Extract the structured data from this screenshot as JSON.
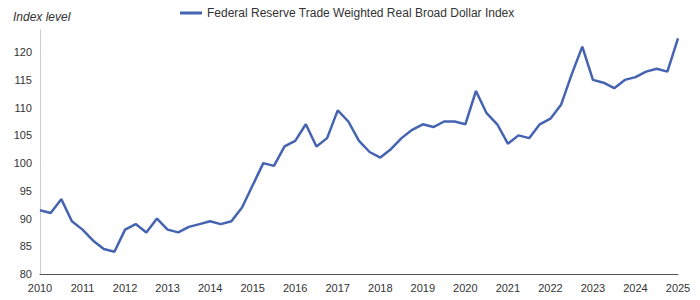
{
  "chart_data": {
    "type": "line",
    "y_label": "Index level",
    "legend": "top",
    "grid": false,
    "x": [
      2010,
      2010.25,
      2010.5,
      2010.75,
      2011,
      2011.25,
      2011.5,
      2011.75,
      2012,
      2012.25,
      2012.5,
      2012.75,
      2013,
      2013.25,
      2013.5,
      2013.75,
      2014,
      2014.25,
      2014.5,
      2014.75,
      2015,
      2015.25,
      2015.5,
      2015.75,
      2016,
      2016.25,
      2016.5,
      2016.75,
      2017,
      2017.25,
      2017.5,
      2017.75,
      2018,
      2018.25,
      2018.5,
      2018.75,
      2019,
      2019.25,
      2019.5,
      2019.75,
      2020,
      2020.25,
      2020.5,
      2020.75,
      2021,
      2021.25,
      2021.5,
      2021.75,
      2022,
      2022.25,
      2022.5,
      2022.75,
      2023,
      2023.25,
      2023.5,
      2023.75,
      2024,
      2024.25,
      2024.5,
      2024.75,
      2025
    ],
    "series": [
      {
        "name": "Federal Reserve Trade Weighted Real Broad Dollar Index",
        "color": "#4463b0",
        "values": [
          91.5,
          91,
          93.5,
          89.5,
          88,
          86,
          84.5,
          84,
          88,
          89,
          87.5,
          90,
          88,
          87.5,
          88.5,
          89,
          89.5,
          89,
          89.5,
          92,
          96,
          100,
          99.5,
          103,
          104,
          107,
          103,
          104.5,
          109.5,
          107.5,
          104,
          102,
          101,
          102.5,
          104.5,
          106,
          107,
          106.5,
          107.5,
          107.5,
          107,
          113,
          109,
          107,
          103.5,
          105,
          104.5,
          107,
          108,
          110.5,
          116,
          121,
          115,
          114.5,
          113.5,
          115,
          115.5,
          116.5,
          117,
          116.5,
          122.5
        ]
      }
    ],
    "xlim": [
      2010,
      2025
    ],
    "xticks": [
      2010,
      2011,
      2012,
      2013,
      2014,
      2015,
      2016,
      2017,
      2018,
      2019,
      2020,
      2021,
      2022,
      2023,
      2024,
      2025
    ],
    "ylim": [
      80,
      124
    ],
    "yticks": [
      80,
      85,
      90,
      95,
      100,
      105,
      110,
      115,
      120
    ]
  }
}
